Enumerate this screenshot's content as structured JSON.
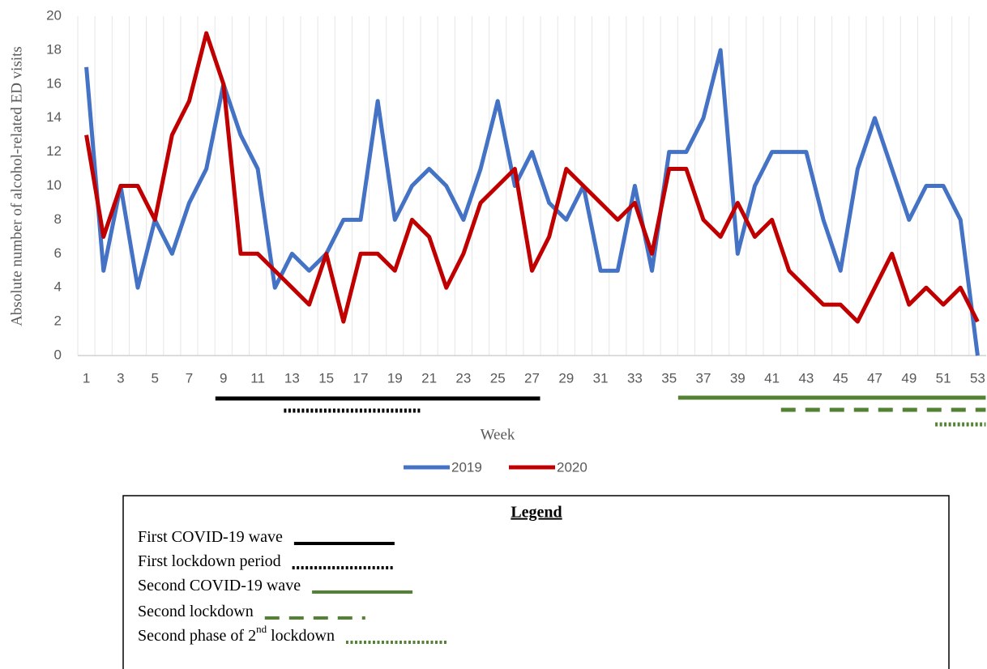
{
  "chart_data": {
    "type": "line",
    "y_label": "Absolute number of alcohol-related ED visits",
    "x_label": "Week",
    "x": [
      1,
      2,
      3,
      4,
      5,
      6,
      7,
      8,
      9,
      10,
      11,
      12,
      13,
      14,
      15,
      16,
      17,
      18,
      19,
      20,
      21,
      22,
      23,
      24,
      25,
      26,
      27,
      28,
      29,
      30,
      31,
      32,
      33,
      34,
      35,
      36,
      37,
      38,
      39,
      40,
      41,
      42,
      43,
      44,
      45,
      46,
      47,
      48,
      49,
      50,
      51,
      52,
      53
    ],
    "xlim": [
      0.5,
      53.5
    ],
    "xticks": [
      1,
      3,
      5,
      7,
      9,
      11,
      13,
      15,
      17,
      19,
      21,
      23,
      25,
      27,
      29,
      31,
      33,
      35,
      37,
      39,
      41,
      43,
      45,
      47,
      49,
      51,
      53
    ],
    "ylim": [
      0,
      20
    ],
    "yticks": [
      0,
      2,
      4,
      6,
      8,
      10,
      12,
      14,
      16,
      18,
      20
    ],
    "grid": true,
    "series": [
      {
        "name": "2019",
        "color": "#4472c4",
        "values": [
          17,
          5,
          10,
          4,
          8,
          6,
          9,
          11,
          16,
          13,
          11,
          4,
          6,
          5,
          6,
          8,
          8,
          15,
          8,
          10,
          11,
          10,
          8,
          11,
          15,
          10,
          12,
          9,
          8,
          10,
          5,
          5,
          10,
          5,
          12,
          12,
          14,
          18,
          6,
          10,
          12,
          12,
          12,
          8,
          5,
          11,
          14,
          11,
          8,
          10,
          10,
          8,
          0
        ]
      },
      {
        "name": "2020",
        "color": "#c00000",
        "values": [
          13,
          7,
          10,
          10,
          8,
          13,
          15,
          19,
          16,
          6,
          6,
          5,
          4,
          3,
          6,
          2,
          6,
          6,
          5,
          8,
          7,
          4,
          6,
          9,
          10,
          11,
          5,
          7,
          11,
          10,
          9,
          8,
          9,
          6,
          11,
          11,
          8,
          7,
          9,
          7,
          8,
          5,
          4,
          3,
          3,
          2,
          4,
          6,
          3,
          4,
          3,
          4,
          2
        ]
      }
    ],
    "legend_title": "Legend",
    "periods": [
      {
        "label": "First COVID-19 wave",
        "start": 9,
        "end": 27,
        "style": "solid",
        "color": "#000000"
      },
      {
        "label": "First lockdown period",
        "start": 13,
        "end": 20,
        "style": "dotted",
        "color": "#000000"
      },
      {
        "label": "Second COVID-19 wave",
        "start": 36,
        "end": 53,
        "style": "solid",
        "color": "#548235"
      },
      {
        "label": "Second lockdown",
        "start": 42,
        "end": 53,
        "style": "dashed",
        "color": "#548235"
      },
      {
        "label": "Second phase of 2",
        "label_sup": "nd",
        "label_after": " lockdown",
        "start": 51,
        "end": 53,
        "style": "dotted",
        "color": "#548235"
      }
    ]
  }
}
